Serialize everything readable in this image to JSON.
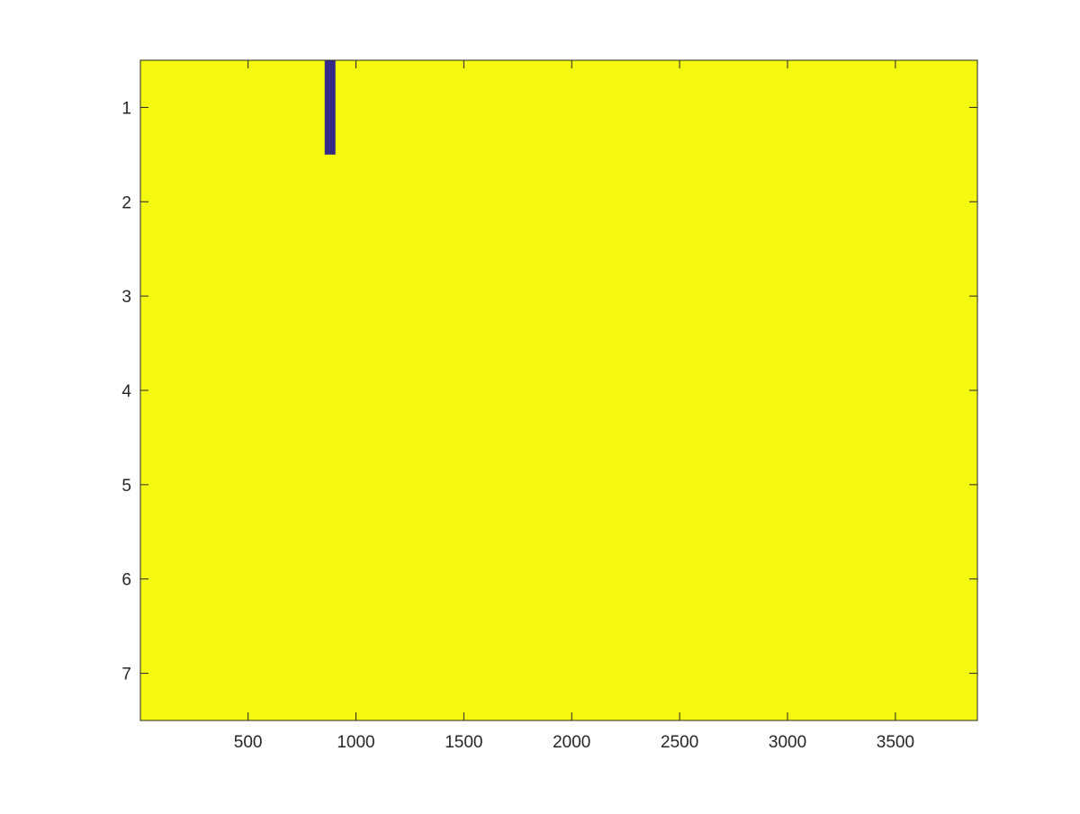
{
  "chart_data": {
    "type": "heatmap",
    "title": "",
    "xlabel": "",
    "ylabel": "",
    "xlim": [
      1,
      3880
    ],
    "ylim": [
      0.5,
      7.5
    ],
    "y_direction": "reversed",
    "grid": false,
    "legend": "none",
    "background_value_color": "#f5f90f",
    "cells": [
      {
        "x_start": 855,
        "x_end": 905,
        "row": 1,
        "color": "#352a87"
      }
    ],
    "x_ticks": [
      500,
      1000,
      1500,
      2000,
      2500,
      3000,
      3500
    ],
    "y_ticks": [
      1,
      2,
      3,
      4,
      5,
      6,
      7
    ]
  }
}
